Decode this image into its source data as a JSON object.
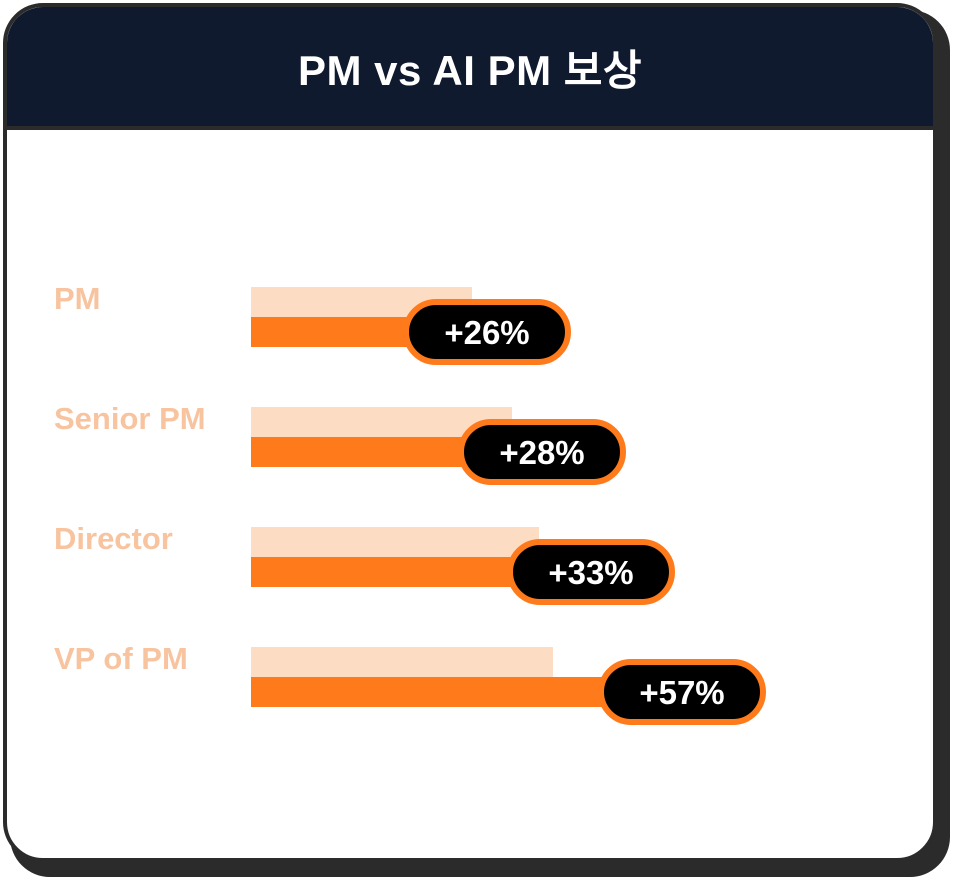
{
  "colors": {
    "header_bg": "#0f1a2e",
    "pm_bar": "#fddcc4",
    "ai_pm_bar": "#ff7a1a",
    "label": "#f8c4a0",
    "badge_bg": "#000000",
    "badge_border": "#ff7a1a"
  },
  "chart_data": {
    "type": "bar",
    "orientation": "horizontal",
    "title": "PM vs AI PM 보상",
    "categories": [
      "PM",
      "Senior PM",
      "Director",
      "VP of PM"
    ],
    "series": [
      {
        "values": [
          221,
          261,
          288,
          302
        ]
      },
      {
        "values": [
          279,
          334,
          383,
          474
        ]
      }
    ],
    "data_labels": [
      "+26%",
      "+28%",
      "+33%",
      "+57%"
    ],
    "xlim": [
      0,
      520
    ],
    "grid": false,
    "legend": "none"
  }
}
